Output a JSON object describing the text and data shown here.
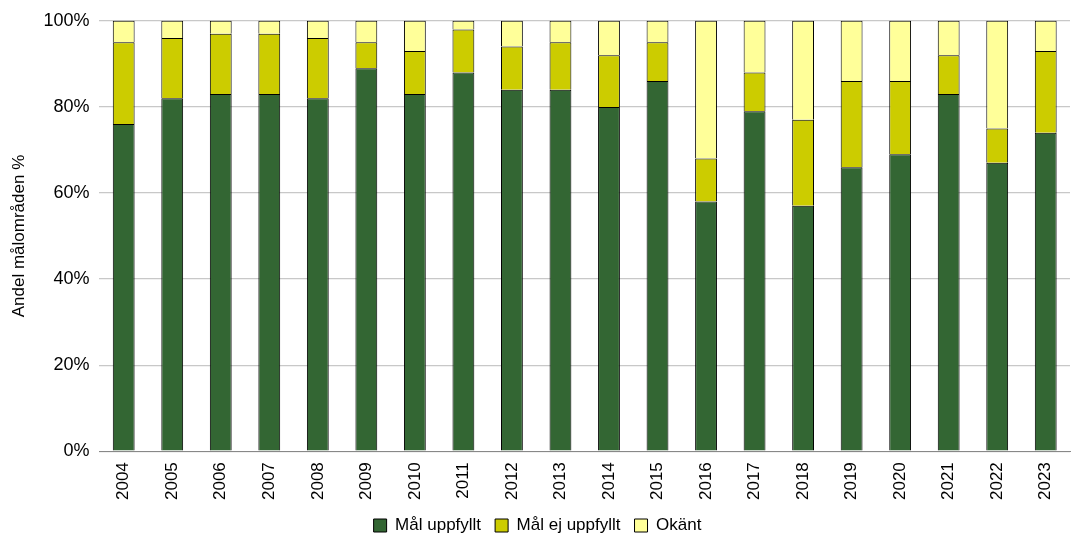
{
  "chart_data": {
    "type": "bar",
    "stacked": true,
    "ylabel": "Andel målområden %",
    "categories": [
      "2004",
      "2005",
      "2006",
      "2007",
      "2008",
      "2009",
      "2010",
      "2011",
      "2012",
      "2013",
      "2014",
      "2015",
      "2016",
      "2017",
      "2018",
      "2019",
      "2020",
      "2021",
      "2022",
      "2023"
    ],
    "series": [
      {
        "name": "Mål uppfyllt",
        "color": "#336633",
        "values": [
          76,
          82,
          83,
          83,
          82,
          89,
          83,
          88,
          84,
          84,
          80,
          86,
          58,
          79,
          57,
          66,
          69,
          83,
          67,
          74
        ]
      },
      {
        "name": "Mål ej uppfyllt",
        "color": "#cccc00",
        "values": [
          19,
          14,
          14,
          14,
          14,
          6,
          10,
          10,
          10,
          11,
          12,
          9,
          10,
          9,
          20,
          20,
          17,
          9,
          8,
          19
        ]
      },
      {
        "name": "Okänt",
        "color": "#ffff99",
        "values": [
          5,
          4,
          3,
          3,
          4,
          5,
          7,
          2,
          6,
          5,
          8,
          5,
          32,
          12,
          23,
          14,
          14,
          8,
          25,
          7
        ]
      }
    ],
    "ylim": [
      0,
      100
    ],
    "yticks": [
      {
        "value": 0,
        "label": "0%"
      },
      {
        "value": 20,
        "label": "20%"
      },
      {
        "value": 40,
        "label": "40%"
      },
      {
        "value": 60,
        "label": "60%"
      },
      {
        "value": 80,
        "label": "80%"
      },
      {
        "value": 100,
        "label": "100%"
      }
    ],
    "grid": "y",
    "legend": "bottom"
  }
}
